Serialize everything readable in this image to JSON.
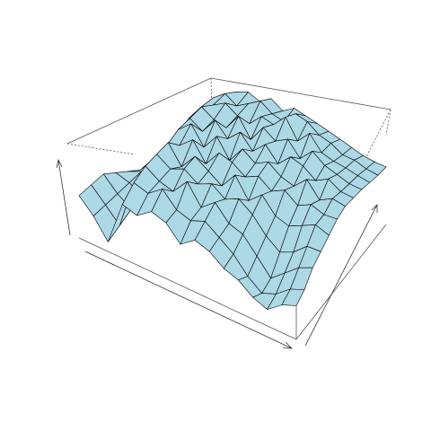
{
  "chart_data": {
    "type": "surface",
    "color": "#add8e6",
    "zlim": [
      0,
      1
    ],
    "z": [
      [
        0.45,
        0.3,
        0.1,
        0.55,
        0.5,
        0.6,
        0.55,
        0.4,
        0.5,
        0.45,
        0.35,
        0.3,
        0.2,
        0.15,
        0.25,
        0.3
      ],
      [
        0.5,
        0.35,
        0.2,
        0.7,
        0.65,
        0.75,
        0.6,
        0.55,
        0.6,
        0.5,
        0.4,
        0.25,
        0.15,
        0.2,
        0.3,
        0.35
      ],
      [
        0.55,
        0.4,
        0.3,
        0.8,
        0.7,
        0.65,
        0.8,
        0.6,
        0.7,
        0.55,
        0.5,
        0.35,
        0.2,
        0.3,
        0.4,
        0.45
      ],
      [
        0.5,
        0.45,
        0.35,
        0.85,
        0.75,
        0.8,
        0.7,
        0.75,
        0.65,
        0.7,
        0.6,
        0.45,
        0.35,
        0.4,
        0.5,
        0.5
      ],
      [
        0.45,
        0.5,
        0.6,
        0.9,
        0.7,
        0.85,
        0.75,
        0.65,
        0.8,
        0.6,
        0.7,
        0.55,
        0.5,
        0.55,
        0.6,
        0.55
      ],
      [
        0.4,
        0.55,
        0.75,
        0.8,
        0.9,
        0.7,
        0.85,
        0.8,
        0.7,
        0.75,
        0.65,
        0.7,
        0.6,
        0.65,
        0.6,
        0.6
      ],
      [
        0.45,
        0.6,
        0.85,
        0.95,
        0.75,
        0.9,
        0.7,
        0.85,
        0.75,
        0.8,
        0.7,
        0.65,
        0.75,
        0.6,
        0.65,
        0.62
      ],
      [
        0.5,
        0.7,
        0.9,
        0.8,
        0.95,
        0.8,
        0.9,
        0.75,
        0.85,
        0.7,
        0.8,
        0.75,
        0.65,
        0.7,
        0.62,
        0.6
      ],
      [
        0.55,
        0.8,
        0.95,
        0.85,
        0.8,
        0.95,
        0.75,
        0.9,
        0.8,
        0.85,
        0.7,
        0.8,
        0.7,
        0.65,
        0.6,
        0.58
      ],
      [
        0.6,
        0.85,
        0.9,
        0.95,
        0.85,
        0.8,
        0.9,
        0.85,
        0.95,
        0.75,
        0.85,
        0.7,
        0.65,
        0.62,
        0.58,
        0.55
      ],
      [
        0.62,
        0.88,
        0.95,
        0.85,
        0.9,
        0.95,
        0.85,
        0.8,
        0.9,
        0.85,
        0.75,
        0.7,
        0.62,
        0.6,
        0.55,
        0.52
      ],
      [
        0.65,
        0.85,
        0.9,
        0.92,
        0.85,
        0.9,
        0.8,
        0.85,
        0.8,
        0.75,
        0.7,
        0.65,
        0.6,
        0.55,
        0.52,
        0.5
      ]
    ]
  }
}
